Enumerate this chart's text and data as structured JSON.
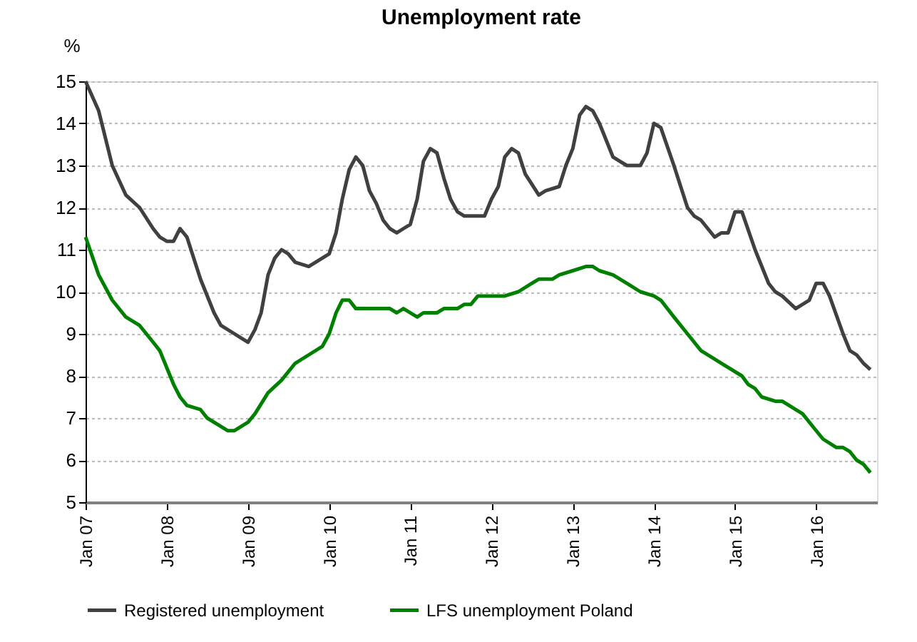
{
  "chart_data": {
    "type": "line",
    "title": "Unemployment rate",
    "ylabel": "%",
    "xlim": [
      "2007-01",
      "2016-10"
    ],
    "xticks": [
      {
        "value": "2007-01",
        "label": "Jan 07"
      },
      {
        "value": "2008-01",
        "label": "Jan 08"
      },
      {
        "value": "2009-01",
        "label": "Jan 09"
      },
      {
        "value": "2010-01",
        "label": "Jan 10"
      },
      {
        "value": "2011-01",
        "label": "Jan 11"
      },
      {
        "value": "2012-01",
        "label": "Jan 12"
      },
      {
        "value": "2013-01",
        "label": "Jan 13"
      },
      {
        "value": "2014-01",
        "label": "Jan 14"
      },
      {
        "value": "2015-01",
        "label": "Jan 15"
      },
      {
        "value": "2016-01",
        "label": "Jan 16"
      }
    ],
    "ylim": [
      5,
      15
    ],
    "yticks": [
      5,
      6,
      7,
      8,
      9,
      10,
      11,
      12,
      13,
      14,
      15
    ],
    "grid": "y",
    "legend": "bottom",
    "line_style": "solid",
    "marker": "none",
    "series": [
      {
        "name": "Registered unemployment",
        "color": "#404040",
        "x": [
          "2007-01",
          "2007-03",
          "2007-05",
          "2007-07",
          "2007-09",
          "2007-11",
          "2007-12",
          "2008-01",
          "2008-02",
          "2008-03",
          "2008-04",
          "2008-06",
          "2008-08",
          "2008-09",
          "2008-11",
          "2008-12",
          "2009-01",
          "2009-02",
          "2009-03",
          "2009-04",
          "2009-05",
          "2009-06",
          "2009-07",
          "2009-08",
          "2009-10",
          "2009-11",
          "2010-01",
          "2010-02",
          "2010-03",
          "2010-04",
          "2010-05",
          "2010-06",
          "2010-07",
          "2010-08",
          "2010-09",
          "2010-10",
          "2010-11",
          "2010-12",
          "2011-01",
          "2011-02",
          "2011-03",
          "2011-04",
          "2011-05",
          "2011-06",
          "2011-07",
          "2011-08",
          "2011-09",
          "2011-12",
          "2012-01",
          "2012-02",
          "2012-03",
          "2012-04",
          "2012-05",
          "2012-06",
          "2012-08",
          "2012-09",
          "2012-11",
          "2012-12",
          "2013-01",
          "2013-02",
          "2013-03",
          "2013-04",
          "2013-05",
          "2013-07",
          "2013-08",
          "2013-09",
          "2013-11",
          "2013-12",
          "2014-01",
          "2014-02",
          "2014-04",
          "2014-06",
          "2014-07",
          "2014-08",
          "2014-10",
          "2014-11",
          "2014-12",
          "2015-01",
          "2015-02",
          "2015-04",
          "2015-06",
          "2015-07",
          "2015-08",
          "2015-10",
          "2015-11",
          "2015-12",
          "2016-01",
          "2016-02",
          "2016-03",
          "2016-05",
          "2016-06",
          "2016-07",
          "2016-08",
          "2016-09"
        ],
        "values": [
          15.0,
          14.3,
          13.0,
          12.3,
          12.0,
          11.5,
          11.3,
          11.2,
          11.2,
          11.5,
          11.3,
          10.3,
          9.5,
          9.2,
          9.0,
          8.9,
          8.8,
          9.1,
          9.5,
          10.4,
          10.8,
          11.0,
          10.9,
          10.7,
          10.6,
          10.7,
          10.9,
          11.4,
          12.2,
          12.9,
          13.2,
          13.0,
          12.4,
          12.1,
          11.7,
          11.5,
          11.4,
          11.5,
          11.6,
          12.2,
          13.1,
          13.4,
          13.3,
          12.7,
          12.2,
          11.9,
          11.8,
          11.8,
          12.2,
          12.5,
          13.2,
          13.4,
          13.3,
          12.8,
          12.3,
          12.4,
          12.5,
          13.0,
          13.4,
          14.2,
          14.4,
          14.3,
          14.0,
          13.2,
          13.1,
          13.0,
          13.0,
          13.3,
          14.0,
          13.9,
          13.0,
          12.0,
          11.8,
          11.7,
          11.3,
          11.4,
          11.4,
          11.9,
          11.9,
          11.0,
          10.2,
          10.0,
          9.9,
          9.6,
          9.7,
          9.8,
          10.2,
          10.2,
          9.9,
          9.0,
          8.6,
          8.5,
          8.3,
          8.15
        ]
      },
      {
        "name": "LFS unemployment Poland",
        "color": "#008000",
        "x": [
          "2007-01",
          "2007-03",
          "2007-05",
          "2007-07",
          "2007-09",
          "2007-11",
          "2007-12",
          "2008-01",
          "2008-02",
          "2008-03",
          "2008-04",
          "2008-06",
          "2008-07",
          "2008-09",
          "2008-10",
          "2008-11",
          "2009-01",
          "2009-02",
          "2009-04",
          "2009-06",
          "2009-08",
          "2009-10",
          "2009-12",
          "2010-01",
          "2010-02",
          "2010-03",
          "2010-04",
          "2010-05",
          "2010-10",
          "2010-11",
          "2010-12",
          "2011-02",
          "2011-03",
          "2011-05",
          "2011-06",
          "2011-08",
          "2011-09",
          "2011-10",
          "2011-11",
          "2012-03",
          "2012-05",
          "2012-07",
          "2012-08",
          "2012-10",
          "2012-11",
          "2013-01",
          "2013-03",
          "2013-04",
          "2013-05",
          "2013-07",
          "2013-09",
          "2013-11",
          "2014-01",
          "2014-02",
          "2014-04",
          "2014-06",
          "2014-08",
          "2014-10",
          "2014-12",
          "2015-02",
          "2015-03",
          "2015-04",
          "2015-05",
          "2015-07",
          "2015-08",
          "2015-10",
          "2015-11",
          "2016-01",
          "2016-02",
          "2016-04",
          "2016-05",
          "2016-06",
          "2016-07",
          "2016-08",
          "2016-09"
        ],
        "values": [
          11.3,
          10.4,
          9.8,
          9.4,
          9.2,
          8.8,
          8.6,
          8.2,
          7.8,
          7.5,
          7.3,
          7.2,
          7.0,
          6.8,
          6.7,
          6.7,
          6.9,
          7.1,
          7.6,
          7.9,
          8.3,
          8.5,
          8.7,
          9.0,
          9.5,
          9.8,
          9.8,
          9.6,
          9.6,
          9.5,
          9.6,
          9.4,
          9.5,
          9.5,
          9.6,
          9.6,
          9.7,
          9.7,
          9.9,
          9.9,
          10.0,
          10.2,
          10.3,
          10.3,
          10.4,
          10.5,
          10.6,
          10.6,
          10.5,
          10.4,
          10.2,
          10.0,
          9.9,
          9.8,
          9.4,
          9.0,
          8.6,
          8.4,
          8.2,
          8.0,
          7.8,
          7.7,
          7.5,
          7.4,
          7.4,
          7.2,
          7.1,
          6.7,
          6.5,
          6.3,
          6.3,
          6.2,
          6.0,
          5.9,
          5.7
        ]
      }
    ]
  }
}
